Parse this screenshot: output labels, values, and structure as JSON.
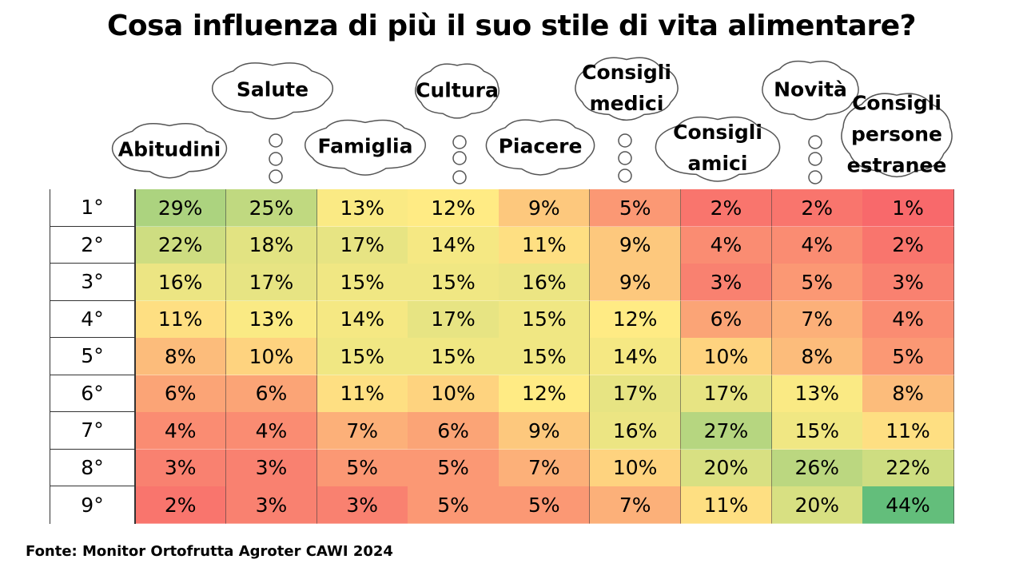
{
  "title": "Cosa influenza di più il suo stile di vita alimentare?",
  "source": "Fonte: Monitor Ortofrutta Agroter CAWI 2024",
  "chart_data": {
    "type": "heatmap",
    "title": "Cosa influenza di più il suo stile di vita alimentare?",
    "rows": [
      "1°",
      "2°",
      "3°",
      "4°",
      "5°",
      "6°",
      "7°",
      "8°",
      "9°"
    ],
    "columns": [
      {
        "name": "Abitudini",
        "lines": [
          "Abitudini"
        ]
      },
      {
        "name": "Salute",
        "lines": [
          "Salute"
        ]
      },
      {
        "name": "Famiglia",
        "lines": [
          "Famiglia"
        ]
      },
      {
        "name": "Cultura",
        "lines": [
          "Cultura"
        ]
      },
      {
        "name": "Piacere",
        "lines": [
          "Piacere"
        ]
      },
      {
        "name": "Consigli medici",
        "lines": [
          "Consigli",
          "medici"
        ]
      },
      {
        "name": "Consigli amici",
        "lines": [
          "Consigli",
          "amici"
        ]
      },
      {
        "name": "Novità",
        "lines": [
          "Novità"
        ]
      },
      {
        "name": "Consigli persone estranee",
        "lines": [
          "Consigli",
          "persone",
          "estranee"
        ]
      }
    ],
    "values": [
      [
        29,
        25,
        13,
        12,
        9,
        5,
        2,
        2,
        1
      ],
      [
        22,
        18,
        17,
        14,
        11,
        9,
        4,
        4,
        2
      ],
      [
        16,
        17,
        15,
        15,
        16,
        9,
        3,
        5,
        3
      ],
      [
        11,
        13,
        14,
        17,
        15,
        12,
        6,
        7,
        4
      ],
      [
        8,
        10,
        15,
        15,
        15,
        14,
        10,
        8,
        5
      ],
      [
        6,
        6,
        11,
        10,
        12,
        17,
        17,
        13,
        8
      ],
      [
        4,
        4,
        7,
        6,
        9,
        16,
        27,
        15,
        11
      ],
      [
        3,
        3,
        5,
        5,
        7,
        10,
        20,
        26,
        22
      ],
      [
        2,
        3,
        3,
        5,
        5,
        7,
        11,
        20,
        44
      ]
    ],
    "unit": "%",
    "color_scale": {
      "low": "#f8696b",
      "mid": "#ffeb84",
      "high": "#63be7b"
    }
  }
}
